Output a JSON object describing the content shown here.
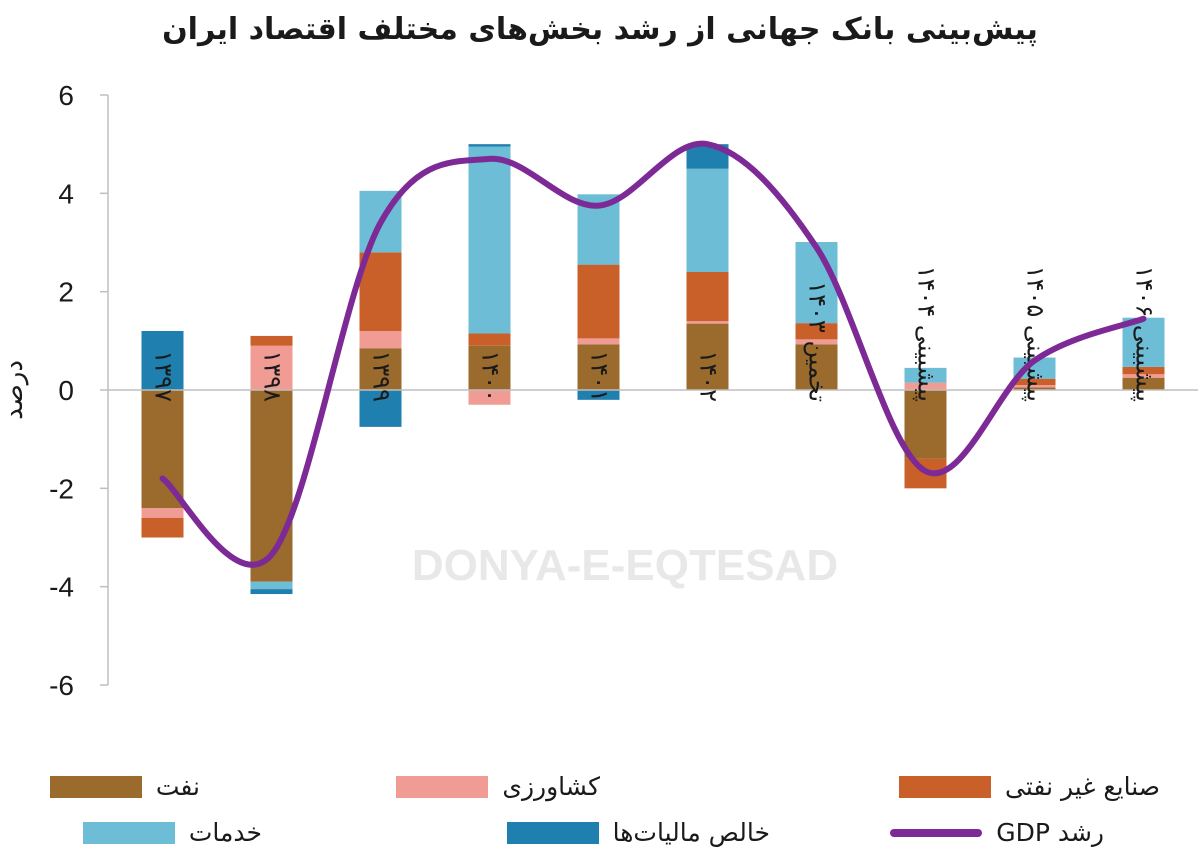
{
  "chart_data": {
    "type": "bar",
    "stacked": true,
    "title": "پیش‌بینی بانک جهانی از رشد بخش‌های مختلف اقتصاد ایران",
    "ylabel": "درصد",
    "ylim": [
      -6,
      6
    ],
    "yticks": [
      6,
      4,
      2,
      0,
      -2,
      -4,
      -6
    ],
    "ytick_labels": [
      "6",
      "4",
      "2",
      "0",
      "-2",
      "-4",
      "-6"
    ],
    "categories": [
      "۱۳۹۷",
      "۱۳۹۸",
      "۱۳۹۹",
      "۱۴۰۰",
      "۱۴۰۱",
      "۱۴۰۲",
      "تخمین ۱۴۰۳",
      "پیشبینی ۱۴۰۴",
      "پیشبینی ۱۴۰۵",
      "پیشبینی ۱۴۰۶"
    ],
    "series": [
      {
        "name": "نفت",
        "color": "#9a6b2c",
        "values": [
          -2.4,
          -3.9,
          0.85,
          0.9,
          0.93,
          1.35,
          0.93,
          -1.4,
          0.05,
          0.25
        ]
      },
      {
        "name": "کشاورزی",
        "color": "#f09c94",
        "values": [
          -0.2,
          0.9,
          0.35,
          -0.3,
          0.12,
          0.05,
          0.1,
          0.15,
          0.05,
          0.07
        ]
      },
      {
        "name": "صنایع غیر نفتی",
        "color": "#c9602a",
        "values": [
          -0.4,
          0.2,
          1.6,
          0.25,
          1.5,
          1.0,
          0.33,
          -0.6,
          0.13,
          0.15
        ]
      },
      {
        "name": "خدمات",
        "color": "#6cbdd5",
        "values": [
          0,
          -0.15,
          1.25,
          3.8,
          1.43,
          2.1,
          1.65,
          0.3,
          0.43,
          1.0
        ]
      },
      {
        "name": "خالص مالیات‌ها",
        "color": "#1f7fae",
        "values": [
          1.2,
          -0.1,
          -0.75,
          0.05,
          -0.2,
          0.5,
          0,
          0,
          0,
          0
        ]
      }
    ],
    "line_series": {
      "name": "رشد GDP",
      "color": "#7d2a96",
      "values": [
        -1.8,
        -3.35,
        3.4,
        4.7,
        3.75,
        5.0,
        2.9,
        -1.65,
        0.6,
        1.45
      ]
    },
    "legend_position": "bottom",
    "watermark": "DONYA-E-EQTESAD",
    "grid": false
  }
}
